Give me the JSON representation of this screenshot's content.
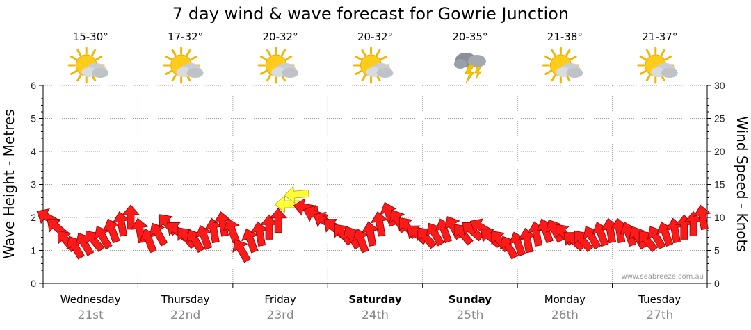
{
  "chart_data": {
    "type": "line",
    "title": "7 day wind & wave forecast for Gowrie Junction",
    "ylabel_left": "Wave Height - Metres",
    "ylabel_right": "Wind Speed - Knots",
    "ylim_left": [
      0,
      6
    ],
    "ylim_right": [
      0,
      30
    ],
    "left_ticks": [
      "0",
      "1",
      "2",
      "3",
      "4",
      "5",
      "6"
    ],
    "right_ticks": [
      "0",
      "5",
      "10",
      "15",
      "20",
      "25",
      "30"
    ],
    "grid": true,
    "watermark": "www.seabreeze.com.au",
    "days": [
      {
        "day": "Wednesday",
        "date": "21st",
        "bold": false,
        "temp": "15-30°",
        "icon": "partly-cloudy-icon"
      },
      {
        "day": "Thursday",
        "date": "22nd",
        "bold": false,
        "temp": "17-32°",
        "icon": "partly-cloudy-icon"
      },
      {
        "day": "Friday",
        "date": "23rd",
        "bold": false,
        "temp": "20-32°",
        "icon": "partly-cloudy-icon"
      },
      {
        "day": "Saturday",
        "date": "24th",
        "bold": true,
        "temp": "20-32°",
        "icon": "partly-cloudy-icon"
      },
      {
        "day": "Sunday",
        "date": "25th",
        "bold": true,
        "temp": "20-35°",
        "icon": "thunderstorm-icon"
      },
      {
        "day": "Monday",
        "date": "26th",
        "bold": false,
        "temp": "21-38°",
        "icon": "partly-cloudy-icon"
      },
      {
        "day": "Tuesday",
        "date": "27th",
        "bold": false,
        "temp": "21-37°",
        "icon": "partly-cloudy-icon"
      }
    ],
    "wind_series": {
      "name": "Wind Speed",
      "units": "knots",
      "hours_per_step": 3,
      "speeds": [
        10,
        8.5,
        6.5,
        5.5,
        6,
        6.5,
        7,
        8,
        9,
        10,
        8,
        6.5,
        7.5,
        9,
        8,
        7,
        6.5,
        7,
        8,
        9,
        8,
        5,
        6.5,
        7.5,
        8.5,
        9.5,
        12,
        13.5,
        11.5,
        10.5,
        9.5,
        8.5,
        7.5,
        7,
        6.5,
        7.5,
        9,
        10.5,
        9.5,
        8.5,
        7.5,
        7,
        7.5,
        8,
        8.5,
        7.5,
        8,
        8.5,
        7,
        6.5,
        5.5,
        6,
        6.5,
        7.5,
        8,
        8,
        7.5,
        6.5,
        6.5,
        7,
        7.5,
        8,
        8,
        7.5,
        7,
        6.5,
        7,
        7.5,
        8,
        8.5,
        9,
        10
      ],
      "directions_deg": [
        120,
        130,
        140,
        150,
        150,
        140,
        150,
        160,
        170,
        180,
        170,
        160,
        150,
        140,
        130,
        140,
        150,
        160,
        170,
        170,
        160,
        150,
        160,
        170,
        180,
        180,
        90,
        85,
        100,
        110,
        120,
        130,
        140,
        150,
        160,
        170,
        170,
        160,
        150,
        140,
        130,
        140,
        150,
        160,
        150,
        140,
        130,
        120,
        130,
        140,
        150,
        160,
        170,
        170,
        160,
        150,
        140,
        130,
        140,
        150,
        160,
        170,
        170,
        160,
        150,
        140,
        150,
        160,
        170,
        180,
        180,
        170
      ]
    }
  }
}
